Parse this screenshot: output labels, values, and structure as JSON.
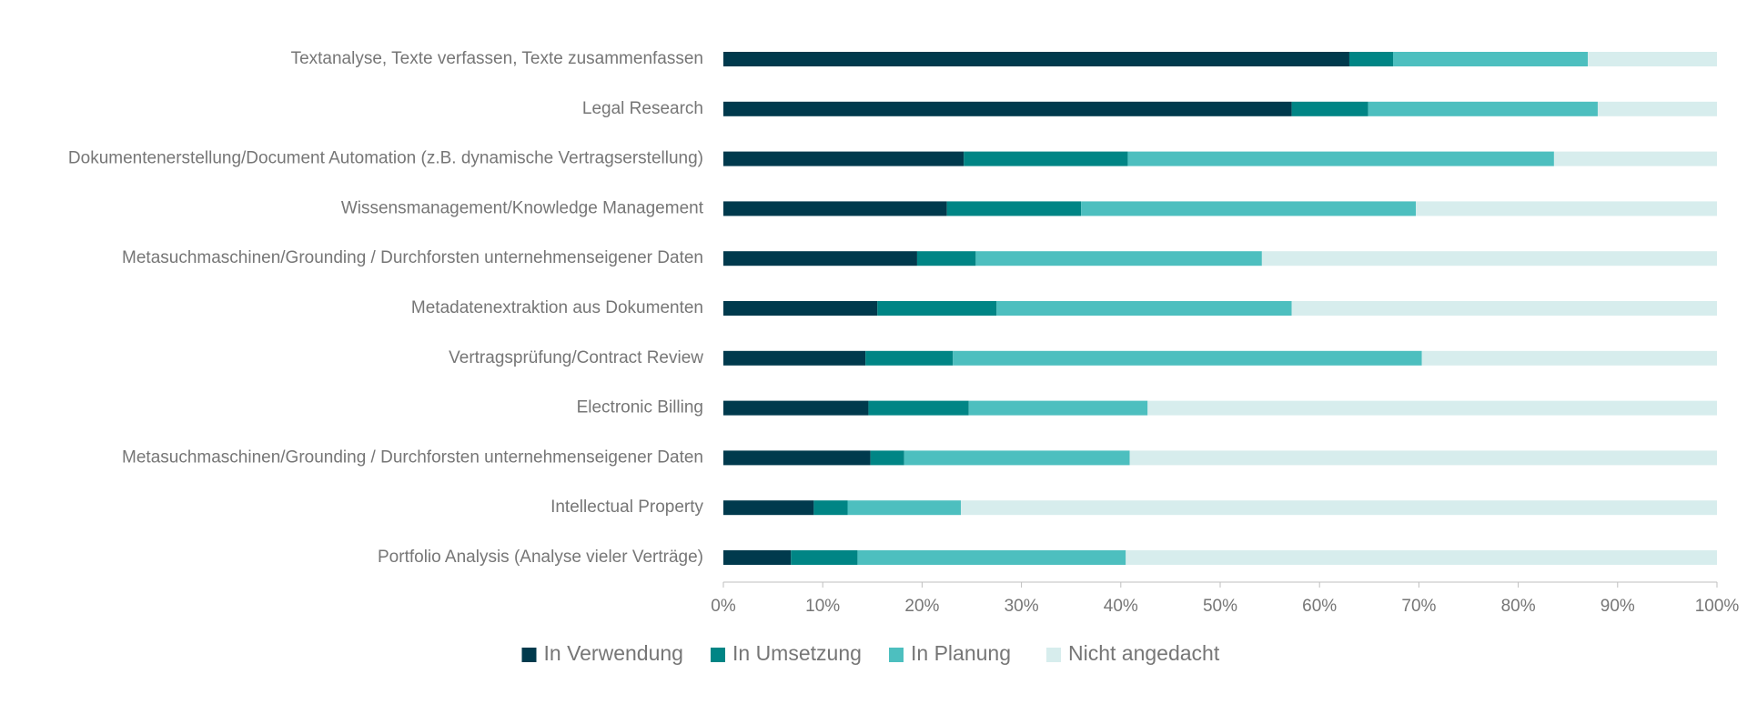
{
  "chart_data": {
    "type": "bar",
    "orientation": "horizontal",
    "stacked": "percent",
    "title": "",
    "xlabel": "",
    "ylabel": "",
    "xlim": [
      0,
      100
    ],
    "x_ticks": [
      "0%",
      "10%",
      "20%",
      "30%",
      "40%",
      "50%",
      "60%",
      "70%",
      "80%",
      "90%",
      "100%"
    ],
    "grid": false,
    "legend_position": "bottom",
    "categories": [
      "Textanalyse, Texte verfassen, Texte zusammenfassen",
      "Legal Research",
      "Dokumentenerstellung/Document Automation (z.B. dynamische Vertragserstellung)",
      "Wissensmanagement/Knowledge Management",
      "Metasuchmaschinen/Grounding / Durchforsten unternehmenseigener Daten",
      "Metadatenextraktion aus Dokumenten",
      "Vertragsprüfung/Contract Review",
      "Electronic Billing",
      "Metasuchmaschinen/Grounding / Durchforsten unternehmenseigener Daten",
      "Intellectual Property",
      "Portfolio Analysis (Analyse vieler Verträge)"
    ],
    "series": [
      {
        "name": "In Verwendung",
        "color": "#003a4d",
        "values": [
          63.0,
          57.2,
          24.2,
          22.5,
          19.5,
          15.5,
          14.3,
          14.6,
          14.8,
          9.1,
          6.8
        ]
      },
      {
        "name": "In Umsetzung",
        "color": "#008585",
        "values": [
          4.4,
          7.7,
          16.5,
          13.5,
          5.9,
          12.0,
          8.8,
          10.1,
          3.4,
          3.4,
          6.7
        ]
      },
      {
        "name": "In Planung",
        "color": "#4dbfbf",
        "values": [
          19.6,
          23.1,
          42.9,
          33.7,
          28.8,
          29.7,
          47.2,
          18.0,
          22.7,
          11.4,
          27.0
        ]
      },
      {
        "name": "Nicht angedacht",
        "color": "#d7eded",
        "values": [
          13.0,
          12.0,
          16.4,
          30.3,
          45.8,
          42.8,
          29.7,
          57.3,
          59.1,
          76.1,
          59.5
        ]
      }
    ]
  }
}
